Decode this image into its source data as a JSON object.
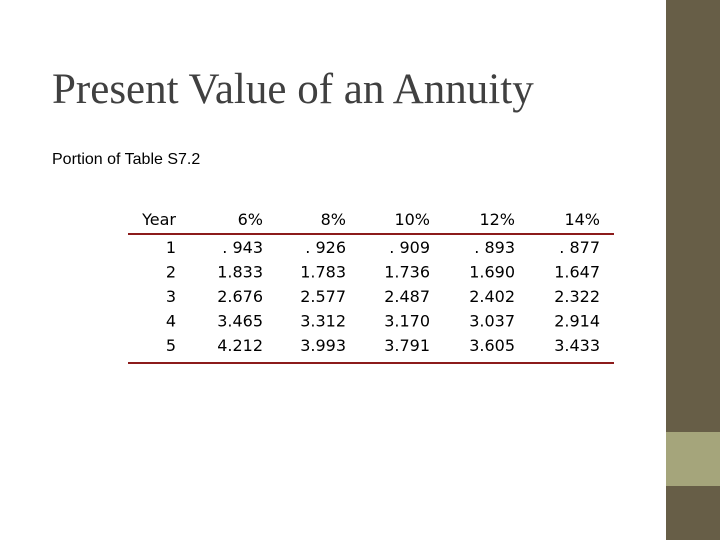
{
  "header": {
    "title": "Present Value of an Annuity",
    "subtitle": "Portion of Table S7.2"
  },
  "table": {
    "columns": [
      "Year",
      "6%",
      "8%",
      "10%",
      "12%",
      "14%"
    ],
    "rows": [
      [
        "1",
        ". 943",
        ". 926",
        ". 909",
        ". 893",
        ". 877"
      ],
      [
        "2",
        "1.833",
        "1.783",
        "1.736",
        "1.690",
        "1.647"
      ],
      [
        "3",
        "2.676",
        "2.577",
        "2.487",
        "2.402",
        "2.322"
      ],
      [
        "4",
        "3.465",
        "3.312",
        "3.170",
        "3.037",
        "2.914"
      ],
      [
        "5",
        "4.212",
        "3.993",
        "3.791",
        "3.605",
        "3.433"
      ]
    ]
  }
}
